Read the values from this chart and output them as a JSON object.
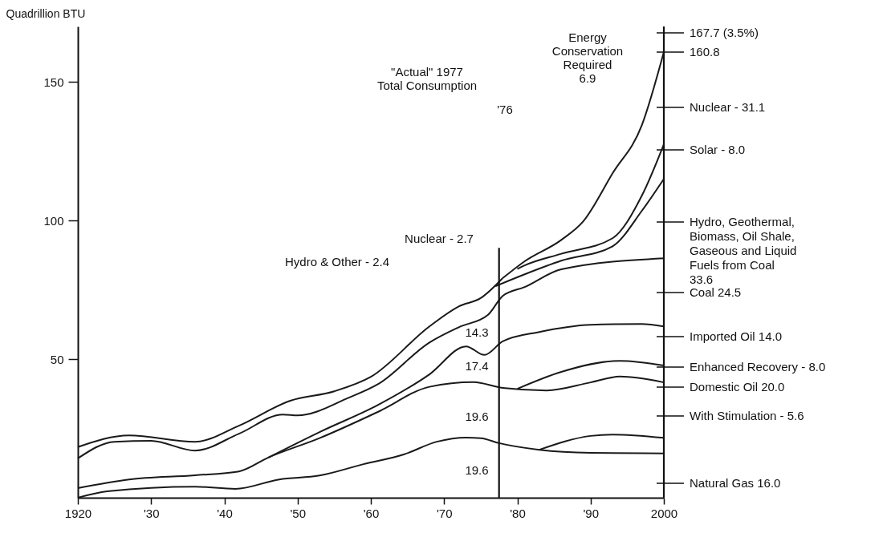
{
  "chart_data": {
    "type": "line",
    "ylabel": "Quadrillion BTU",
    "xlim": [
      1920,
      2000
    ],
    "ylim": [
      0,
      170
    ],
    "xticks": [
      1920,
      {
        "value": 1930,
        "label": "'30"
      },
      {
        "value": 1940,
        "label": "'40"
      },
      {
        "value": 1950,
        "label": "'50"
      },
      {
        "value": 1960,
        "label": "'60"
      },
      {
        "value": 1970,
        "label": "'70"
      },
      {
        "value": 1980,
        "label": "'80"
      },
      {
        "value": 1990,
        "label": "'90"
      },
      2000
    ],
    "yticks": [
      50,
      100,
      150
    ],
    "grid": false,
    "line_style": "solid",
    "series": [
      {
        "color": "#1a1a1a",
        "x": [
          1920,
          1924,
          1936,
          1941.5,
          1947.5,
          1953,
          1959,
          1964.5,
          1969,
          1973,
          1975,
          1977.5,
          1983,
          1990,
          2000
        ],
        "values": [
          0,
          2.3,
          4,
          3.2,
          6.6,
          8,
          12.1,
          15.6,
          20.2,
          21.7,
          21.5,
          19.7,
          17.3,
          16.2,
          16.0
        ]
      },
      {
        "color": "#1a1a1a",
        "x": [
          1983,
          1990,
          1993,
          2000
        ],
        "values": [
          17.3,
          22.3,
          22.8,
          21.6
        ]
      },
      {
        "color": "#1a1a1a",
        "x": [
          1920,
          1927,
          1936,
          1942,
          1946,
          1953,
          1961,
          1968,
          1974,
          1978,
          1984,
          1990,
          1994,
          2000
        ],
        "values": [
          3.5,
          6.6,
          8.1,
          9.5,
          14.5,
          21.5,
          31,
          40,
          41.7,
          39.6,
          38.7,
          41.6,
          43.7,
          41.6
        ]
      },
      {
        "color": "#1a1a1a",
        "x": [
          1980,
          1986,
          1994,
          2000
        ],
        "values": [
          39.3,
          45.4,
          49.4,
          47.7
        ]
      },
      {
        "color": "#1a1a1a",
        "x": [
          1946,
          1953,
          1961,
          1968,
          1973,
          1975.5,
          1978,
          1983,
          1990,
          1997,
          2000
        ],
        "values": [
          14.5,
          23.7,
          33.5,
          44.5,
          54.6,
          51.5,
          56.4,
          59.8,
          62.4,
          62.7,
          61.8
        ]
      },
      {
        "color": "#1a1a1a",
        "x": [
          1920,
          1925,
          1930,
          1936,
          1942,
          1948,
          1950,
          1957,
          1961,
          1968,
          1972,
          1976,
          1978,
          1981,
          1986,
          2000
        ],
        "values": [
          14.2,
          20.2,
          20.5,
          17,
          23.1,
          30,
          29.7,
          36.1,
          41,
          56,
          61.5,
          66,
          72.8,
          76,
          82.4,
          86.4
        ]
      },
      {
        "color": "#1a1a1a",
        "x": [
          1920,
          1927,
          1936,
          1942,
          1949,
          1955,
          1960,
          1968,
          1972,
          1975,
          1978
        ],
        "values": [
          18.3,
          22.5,
          20.2,
          26,
          35,
          38.4,
          43.6,
          61.8,
          69,
          72,
          79.2
        ]
      },
      {
        "color": "#1a1a1a",
        "x": [
          1977,
          1981,
          1986,
          1993,
          1997,
          2000
        ],
        "values": [
          76.3,
          80.6,
          85.5,
          90.7,
          103.5,
          115
        ]
      },
      {
        "color": "#1a1a1a",
        "x": [
          1980,
          1981,
          1986,
          1993,
          1997,
          2000
        ],
        "values": [
          82.5,
          83.8,
          88,
          93.6,
          109,
          127.5
        ]
      },
      {
        "color": "#1a1a1a",
        "x": [
          1978,
          1981,
          1986,
          1989,
          1993,
          1997,
          2000
        ],
        "values": [
          79.2,
          85.3,
          93,
          99.7,
          117,
          134.4,
          160.8
        ]
      }
    ],
    "ref_lines": [
      {
        "axis": "x",
        "value": 1977.5,
        "label": null
      },
      {
        "axis": "x",
        "value": 2000,
        "label": null
      }
    ],
    "annotations": [
      "Energy\nConservation\nRequired\n6.9",
      "\"Actual\" 1977\nTotal Consumption",
      "'76",
      "Nuclear - 2.7",
      "Hydro & Other - 2.4",
      "14.3",
      "17.4",
      "19.6",
      "19.6",
      "167.7 (3.5%)",
      "160.8",
      "Nuclear - 31.1",
      "Solar - 8.0",
      "Hydro, Geothermal,\nBiomass, Oil Shale,\nGaseous and Liquid\nFuels from Coal\n33.6",
      "Coal 24.5",
      "Imported Oil 14.0",
      "Enhanced Recovery - 8.0",
      "Domestic Oil 20.0",
      "With Stimulation - 5.6",
      "Natural Gas 16.0"
    ]
  }
}
